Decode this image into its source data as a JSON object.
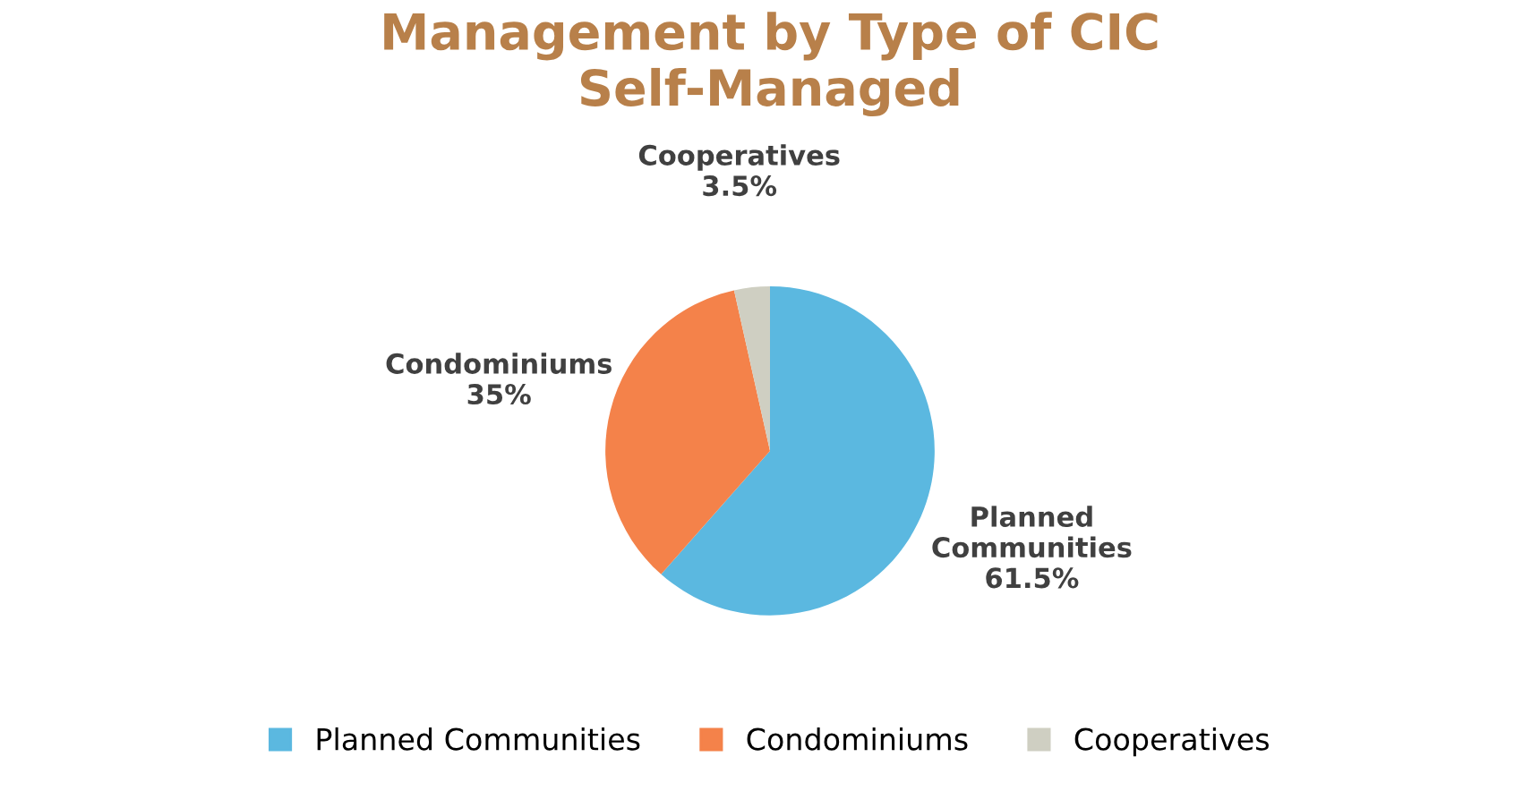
{
  "chart_data": {
    "type": "pie",
    "title": "Management by Type of CIC\nSelf-Managed",
    "categories": [
      "Planned Communities",
      "Condominiums",
      "Cooperatives"
    ],
    "values": [
      61.5,
      35,
      3.5
    ],
    "colors": [
      "#5bb8e0",
      "#f4824a",
      "#cfcfc2"
    ],
    "value_labels": [
      "61.5%",
      "35%",
      "3.5%"
    ],
    "legend": "bottom"
  }
}
